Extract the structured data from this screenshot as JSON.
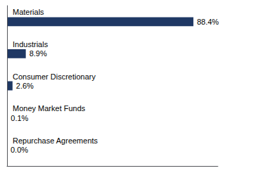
{
  "chart_data": {
    "type": "bar",
    "orientation": "horizontal",
    "categories": [
      "Materials",
      "Industrials",
      "Consumer Discretionary",
      "Money Market Funds",
      "Repurchase Agreements"
    ],
    "values": [
      88.4,
      8.9,
      2.6,
      0.1,
      0.0
    ],
    "value_labels": [
      "88.4%",
      "8.9%",
      "2.6%",
      "0.1%",
      "0.0%"
    ],
    "data_labels": true,
    "color": "#1f3864",
    "xlim": [
      0,
      100
    ],
    "tick_labels": "y",
    "grid": false
  }
}
